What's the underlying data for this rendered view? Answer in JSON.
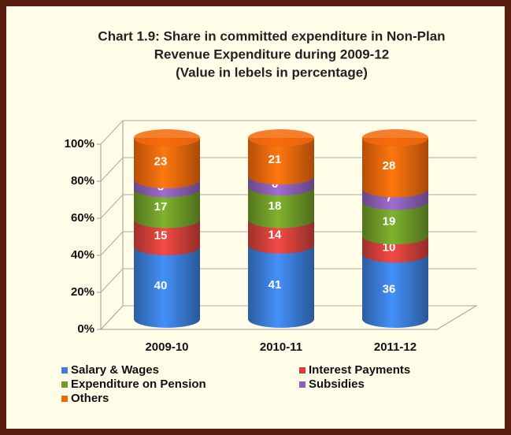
{
  "chart_data": {
    "type": "bar",
    "stacked": true,
    "three_d": true,
    "title": [
      "Chart 1.9: Share in committed expenditure in  Non-Plan",
      "Revenue Expenditure during 2009-12"
    ],
    "subtitle": "(Value in lebels in percentage)",
    "categories": [
      "2009-10",
      "2010-11",
      "2011-12"
    ],
    "series": [
      {
        "name": "Salary & Wages",
        "color": "#3b7dd8",
        "values": [
          40,
          41,
          36
        ]
      },
      {
        "name": "Interest Payments",
        "color": "#d4403a",
        "values": [
          15,
          14,
          10
        ]
      },
      {
        "name": "Expenditure on Pension",
        "color": "#6f9c28",
        "values": [
          17,
          18,
          19
        ]
      },
      {
        "name": "Subsidies",
        "color": "#8b5fb4",
        "values": [
          5,
          6,
          7
        ]
      },
      {
        "name": "Others",
        "color": "#f2680c",
        "values": [
          23,
          21,
          28
        ]
      }
    ],
    "ylim": [
      0,
      100
    ],
    "yticks": [
      {
        "value": 0,
        "label": "0%"
      },
      {
        "value": 20,
        "label": "20%"
      },
      {
        "value": 40,
        "label": "40%"
      },
      {
        "value": 60,
        "label": "60%"
      },
      {
        "value": 80,
        "label": "80%"
      },
      {
        "value": 100,
        "label": "100%"
      }
    ],
    "grid": true,
    "legend": "bottom"
  }
}
